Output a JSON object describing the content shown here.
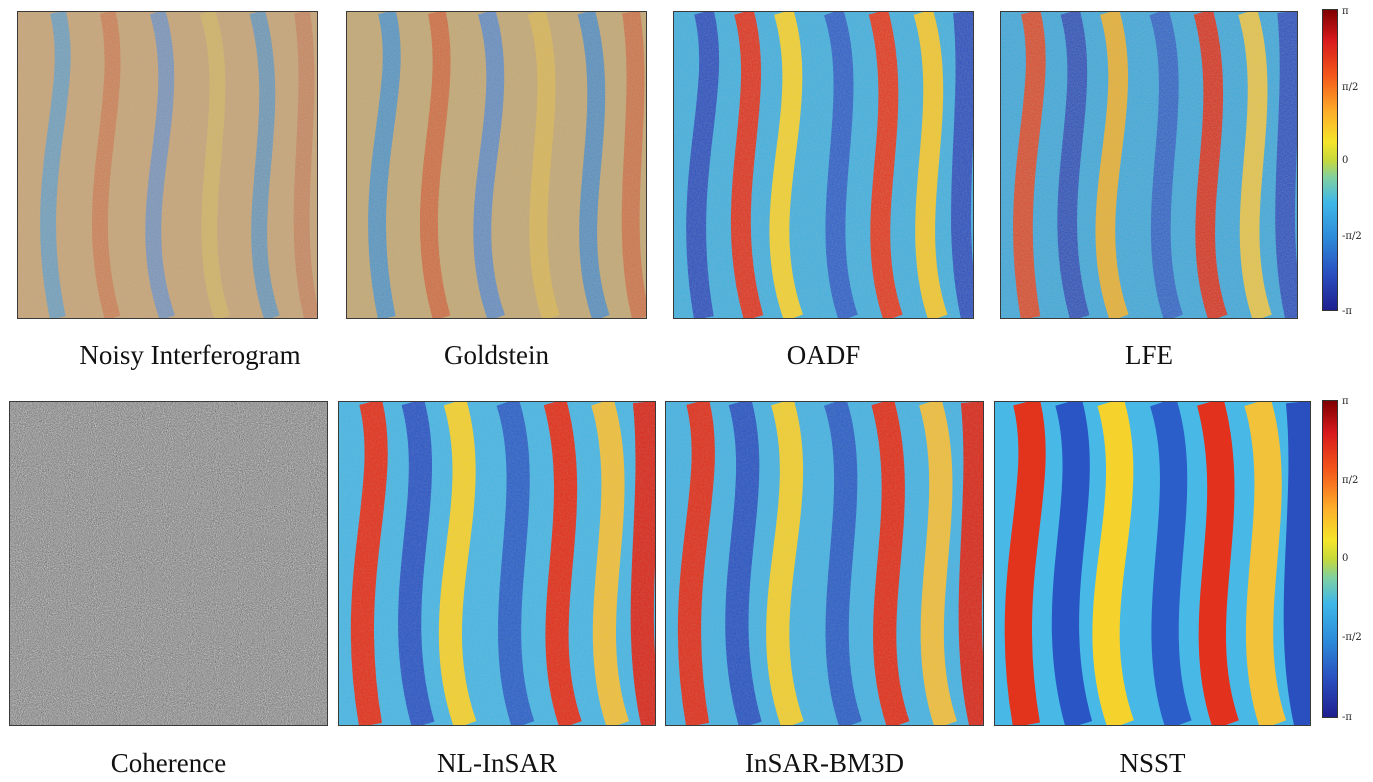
{
  "row1": {
    "captions": [
      "Noisy Interferogram",
      "Goldstein",
      "OADF",
      "LFE"
    ],
    "colorbar_ticks": [
      "π",
      "π/2",
      "0",
      "-π/2",
      "-π"
    ]
  },
  "row2": {
    "captions": [
      "Coherence",
      "NL-InSAR",
      "InSAR-BM3D",
      "NSST"
    ],
    "colorbar_ticks": [
      "π",
      "π/2",
      "0",
      "-π/2",
      "-π"
    ]
  },
  "colors": {
    "phase_max": "#7f0000",
    "phase_half": "#fdae2a",
    "phase_zero": "#c6d93a",
    "phase_neg_half": "#3fb8e8",
    "phase_min": "#1f1f8f",
    "coherence_dark": "#2a2a2a",
    "coherence_light": "#e8e8e8"
  }
}
